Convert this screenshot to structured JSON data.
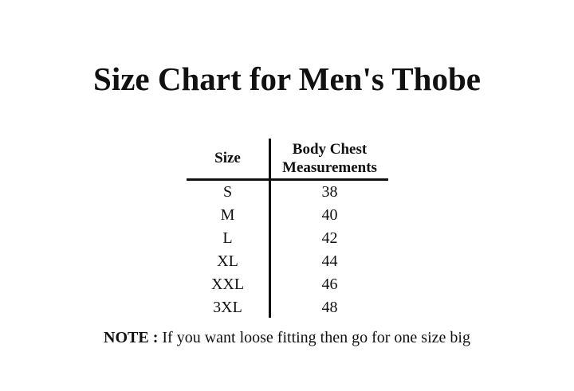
{
  "title": "Size Chart for Men's Thobe",
  "table": {
    "headers": [
      "Size",
      "Body Chest Measurements"
    ],
    "header_lines": [
      "Body Chest",
      "Measurements"
    ],
    "rows": [
      {
        "size": "S",
        "chest": "38"
      },
      {
        "size": "M",
        "chest": "40"
      },
      {
        "size": "L",
        "chest": "42"
      },
      {
        "size": "XL",
        "chest": "44"
      },
      {
        "size": "XXL",
        "chest": "46"
      },
      {
        "size": "3XL",
        "chest": "48"
      }
    ]
  },
  "note": {
    "label": "NOTE :",
    "text": " If you want loose fitting then go for one size big"
  }
}
